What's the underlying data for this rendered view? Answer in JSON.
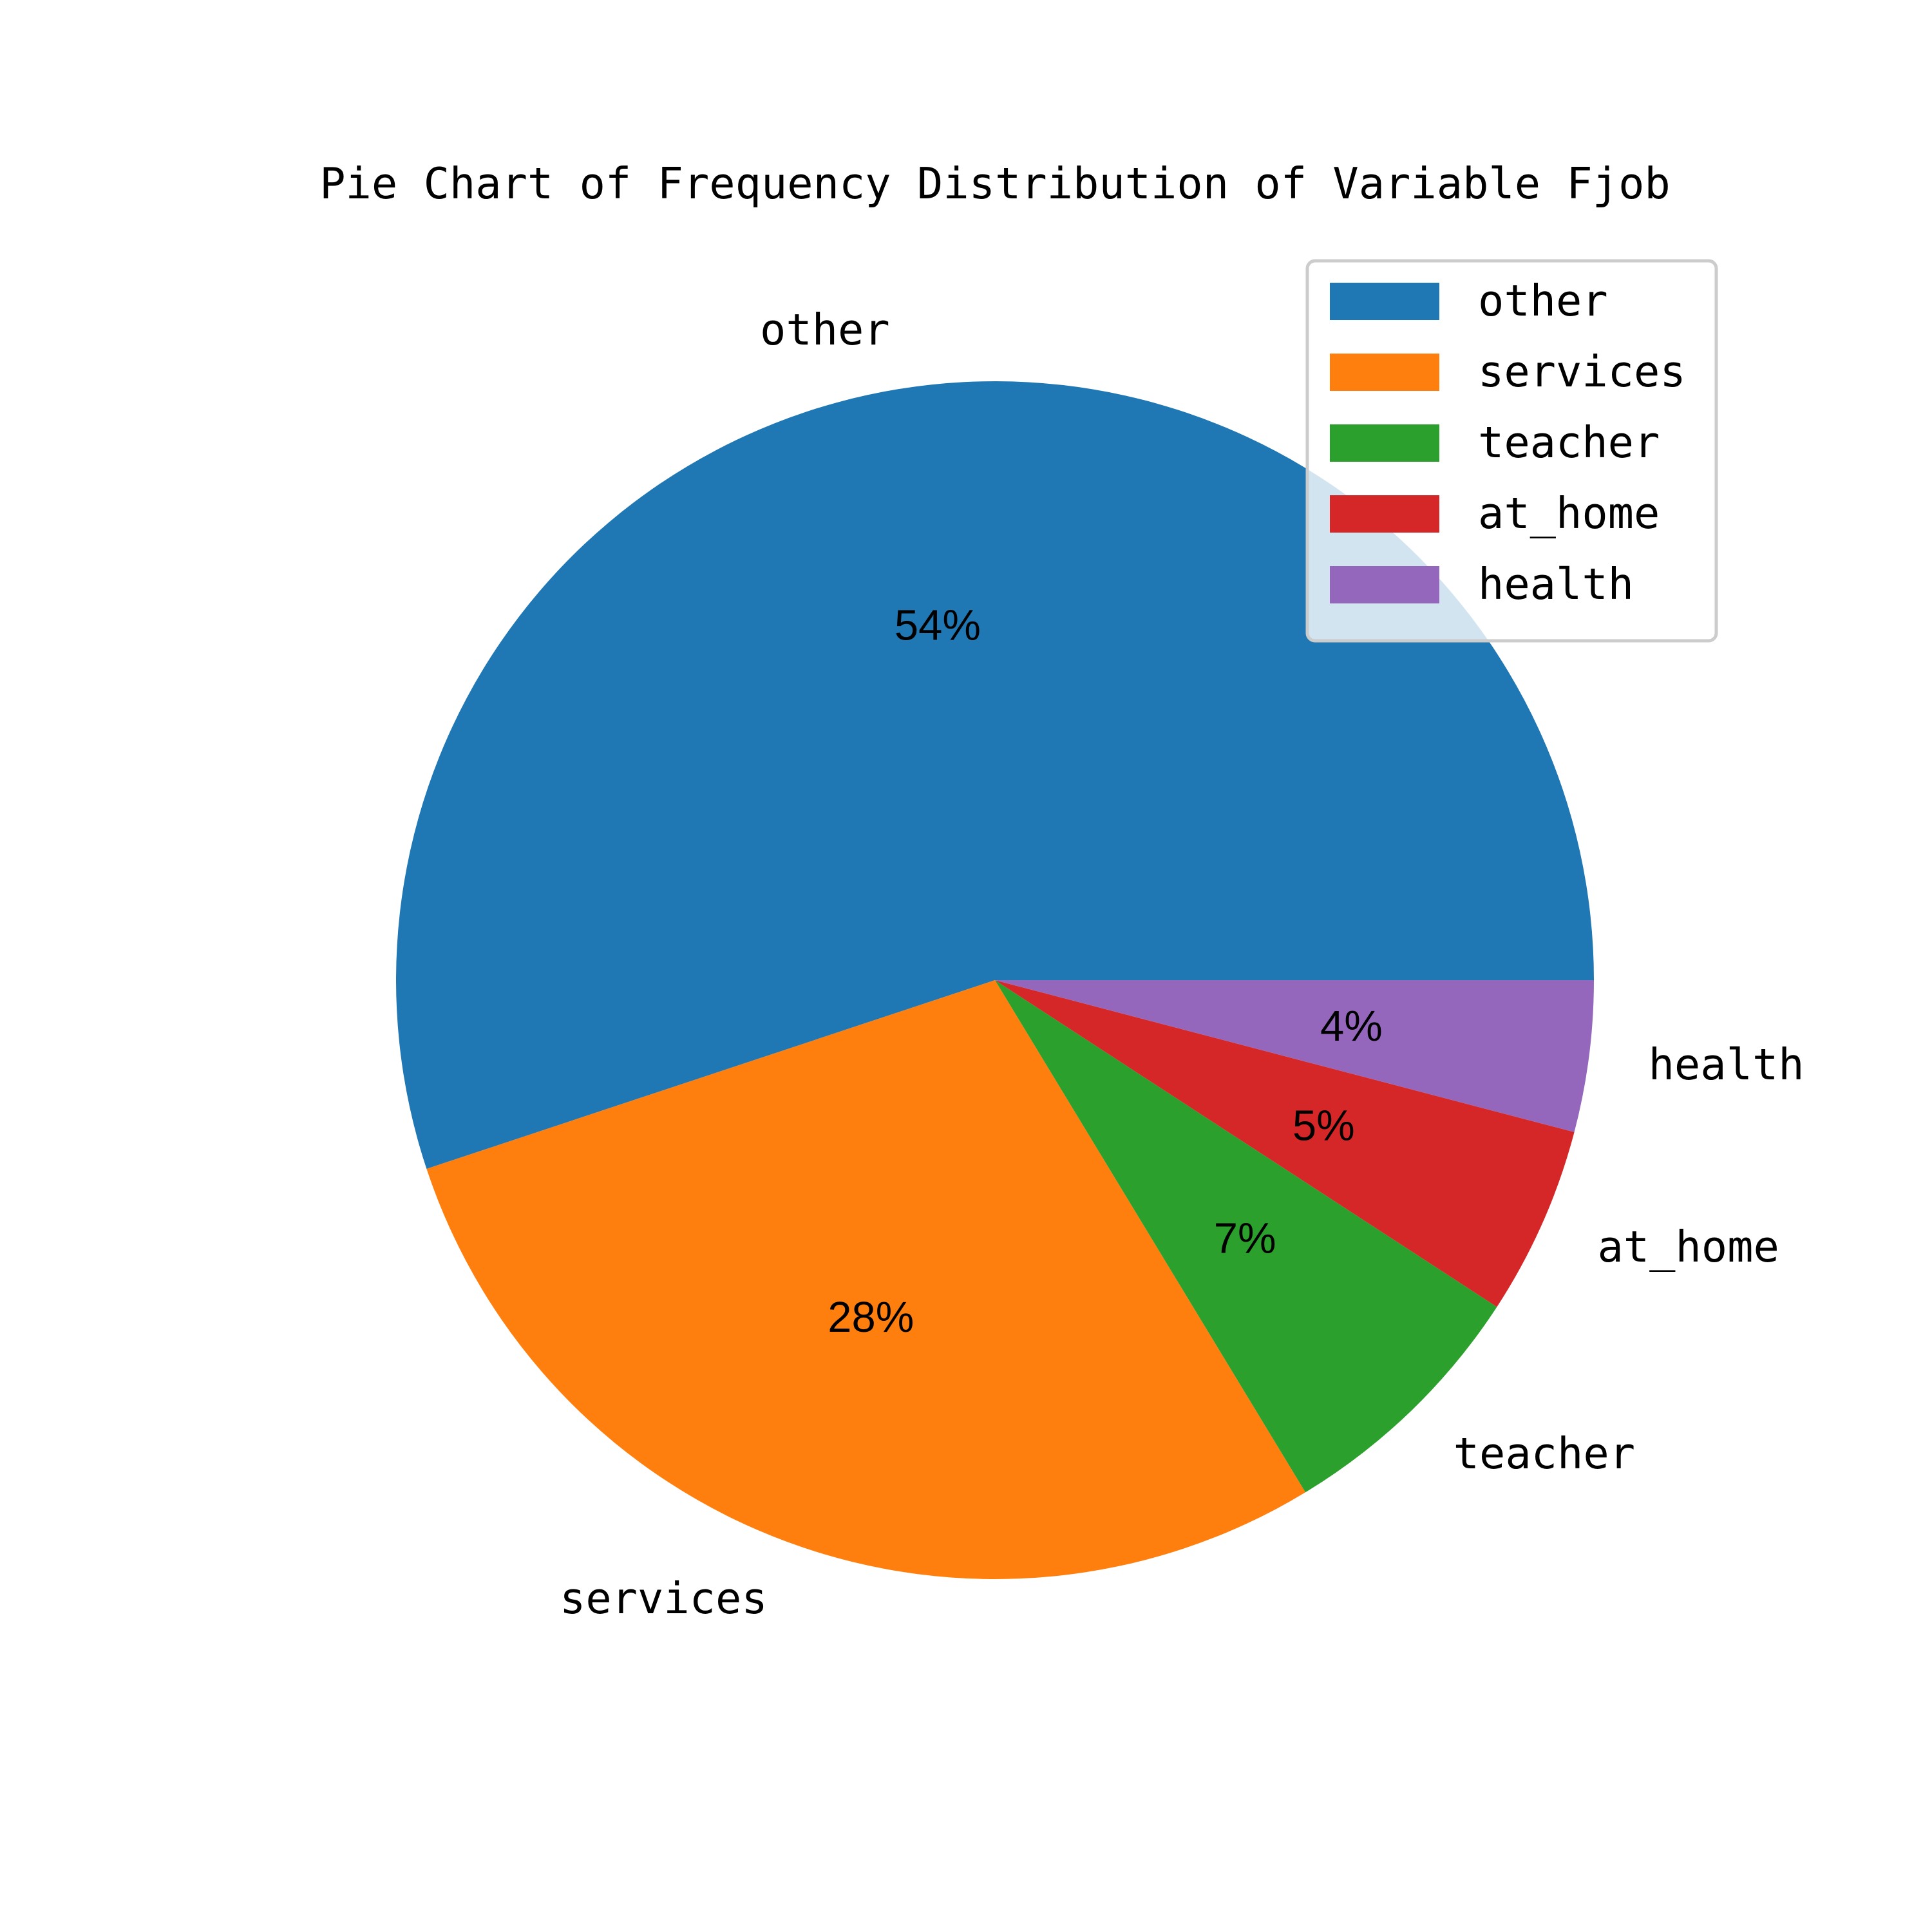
{
  "chart_data": {
    "type": "pie",
    "title": "Pie Chart of Frequency Distribution of Variable Fjob",
    "categories": [
      "other",
      "services",
      "teacher",
      "at_home",
      "health"
    ],
    "values": [
      54,
      28,
      7,
      5,
      4
    ],
    "percent_labels": [
      "54%",
      "28%",
      "7%",
      "5%",
      "4%"
    ],
    "colors": [
      "#1f77b4",
      "#ff7f0e",
      "#2ca02c",
      "#d62728",
      "#9467bd"
    ],
    "start_angle_deg": 0,
    "direction": "counterclockwise",
    "legend": {
      "placement": "top-right",
      "entries": [
        "other",
        "services",
        "teacher",
        "at_home",
        "health"
      ]
    }
  }
}
